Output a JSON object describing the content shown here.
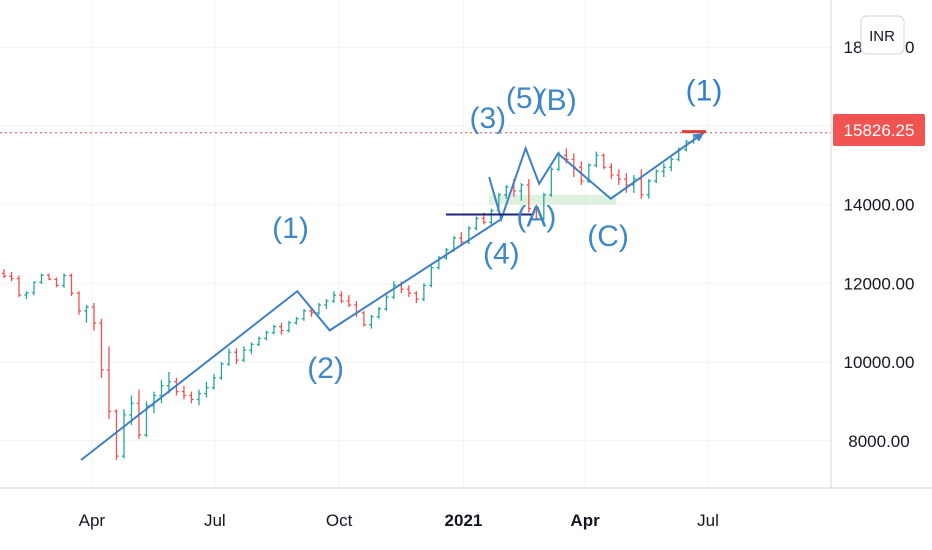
{
  "chart_data": {
    "type": "bar",
    "currency": "INR",
    "last_price": "15826.25",
    "ylim": [
      6800,
      19200
    ],
    "y_ticks": [
      {
        "value": 18000,
        "label": "18000.00"
      },
      {
        "value": 14000,
        "label": "14000.00"
      },
      {
        "value": 12000,
        "label": "12000.00"
      },
      {
        "value": 10000,
        "label": "10000.00"
      },
      {
        "value": 8000,
        "label": "8000.00"
      }
    ],
    "x_ticks": [
      {
        "date": "2020-04-01",
        "label": "Apr",
        "bold": false
      },
      {
        "date": "2020-07-01",
        "label": "Jul",
        "bold": false
      },
      {
        "date": "2020-10-01",
        "label": "Oct",
        "bold": false
      },
      {
        "date": "2021-01-01",
        "label": "2021",
        "bold": true
      },
      {
        "date": "2021-04-01",
        "label": "Apr",
        "bold": true
      },
      {
        "date": "2021-07-01",
        "label": "Jul",
        "bold": false
      }
    ],
    "xlim": [
      "2020-01-24",
      "2021-09-30"
    ],
    "wave_path": [
      {
        "date": "2020-03-24",
        "value": 7511
      },
      {
        "date": "2020-08-31",
        "value": 11800
      },
      {
        "date": "2020-09-24",
        "value": 10805
      },
      {
        "date": "2021-01-29",
        "value": 13634
      },
      {
        "date": "2021-01-20",
        "value": 14700
      },
      {
        "date": "2021-01-29",
        "value": 13634
      },
      {
        "date": "2021-02-16",
        "value": 15432
      },
      {
        "date": "2021-02-26",
        "value": 14530
      },
      {
        "date": "2021-03-12",
        "value": 15300
      },
      {
        "date": "2021-04-20",
        "value": 14150
      },
      {
        "date": "2021-06-28",
        "value": 15830
      }
    ],
    "wave_labels": [
      {
        "label": "(1)",
        "date": "2020-08-26",
        "value": 13150,
        "highlight": false
      },
      {
        "label": "(2)",
        "date": "2020-09-21",
        "value": 9600,
        "highlight": false
      },
      {
        "label": "(3)",
        "date": "2021-01-19",
        "value": 15950,
        "highlight": false
      },
      {
        "label": "(4)",
        "date": "2021-01-29",
        "value": 12500,
        "highlight": false
      },
      {
        "label": "(5)",
        "date": "2021-02-15",
        "value": 16450,
        "highlight": false
      },
      {
        "label": "(A)",
        "date": "2021-02-24",
        "value": 13450,
        "highlight": false
      },
      {
        "label": "(B)",
        "date": "2021-03-11",
        "value": 16400,
        "highlight": false
      },
      {
        "label": "(C)",
        "date": "2021-04-18",
        "value": 12950,
        "highlight": false
      },
      {
        "label": "(1)",
        "date": "2021-06-28",
        "value": 16650,
        "highlight": true
      }
    ],
    "support_line": {
      "start": "2020-12-19",
      "end": "2021-02-21",
      "value": 13750
    },
    "zone": {
      "start": "2021-01-20",
      "end": "2021-04-24",
      "low": 14000,
      "high": 14250
    },
    "ohlc": [
      [
        12254,
        12362,
        12134,
        12180
      ],
      [
        12180,
        12290,
        12050,
        12120
      ],
      [
        12120,
        12200,
        11650,
        11705
      ],
      [
        11705,
        11800,
        11600,
        11760
      ],
      [
        11760,
        12050,
        11700,
        12030
      ],
      [
        12030,
        12250,
        11980,
        12210
      ],
      [
        12210,
        12245,
        12080,
        12100
      ],
      [
        12100,
        12150,
        11900,
        11950
      ],
      [
        11950,
        12250,
        11880,
        12200
      ],
      [
        12200,
        12250,
        11680,
        11750
      ],
      [
        11750,
        11800,
        11200,
        11300
      ],
      [
        11300,
        11450,
        11000,
        11400
      ],
      [
        11400,
        11500,
        10800,
        10990
      ],
      [
        10990,
        11100,
        9600,
        9800
      ],
      [
        9800,
        10400,
        8550,
        8750
      ],
      [
        8750,
        8800,
        7511,
        7610
      ],
      [
        7610,
        8800,
        7550,
        8660
      ],
      [
        8660,
        9150,
        8400,
        8950
      ],
      [
        8950,
        9300,
        8050,
        8150
      ],
      [
        8150,
        9000,
        8100,
        8890
      ],
      [
        8890,
        9250,
        8700,
        9150
      ],
      [
        9150,
        9550,
        8950,
        9400
      ],
      [
        9400,
        9750,
        9200,
        9500
      ],
      [
        9500,
        9600,
        9150,
        9250
      ],
      [
        9250,
        9400,
        9050,
        9150
      ],
      [
        9150,
        9250,
        8950,
        9050
      ],
      [
        9050,
        9300,
        8900,
        9200
      ],
      [
        9200,
        9500,
        9100,
        9350
      ],
      [
        9350,
        9700,
        9300,
        9600
      ],
      [
        9600,
        10000,
        9550,
        9950
      ],
      [
        9950,
        10350,
        9900,
        10250
      ],
      [
        10250,
        10350,
        9950,
        10050
      ],
      [
        10050,
        10400,
        10000,
        10300
      ],
      [
        10300,
        10500,
        10200,
        10450
      ],
      [
        10450,
        10650,
        10400,
        10600
      ],
      [
        10600,
        10800,
        10550,
        10750
      ],
      [
        10750,
        10950,
        10700,
        10900
      ],
      [
        10900,
        11000,
        10700,
        10800
      ],
      [
        10800,
        11050,
        10750,
        11000
      ],
      [
        11000,
        11150,
        10950,
        11100
      ],
      [
        11100,
        11350,
        11050,
        11300
      ],
      [
        11300,
        11400,
        11150,
        11250
      ],
      [
        11250,
        11500,
        11200,
        11450
      ],
      [
        11450,
        11600,
        11350,
        11550
      ],
      [
        11550,
        11800,
        11500,
        11700
      ],
      [
        11700,
        11800,
        11500,
        11550
      ],
      [
        11550,
        11700,
        11400,
        11450
      ],
      [
        11450,
        11550,
        11150,
        11250
      ],
      [
        11250,
        11300,
        10900,
        10950
      ],
      [
        10950,
        11200,
        10850,
        11150
      ],
      [
        11150,
        11400,
        11100,
        11350
      ],
      [
        11350,
        11700,
        11300,
        11650
      ],
      [
        11650,
        12050,
        11600,
        11950
      ],
      [
        11950,
        12050,
        11750,
        11850
      ],
      [
        11850,
        11950,
        11650,
        11750
      ],
      [
        11750,
        11800,
        11500,
        11600
      ],
      [
        11600,
        12000,
        11550,
        11950
      ],
      [
        11950,
        12450,
        11900,
        12400
      ],
      [
        12400,
        12700,
        12350,
        12650
      ],
      [
        12650,
        12900,
        12600,
        12850
      ],
      [
        12850,
        13200,
        12800,
        13150
      ],
      [
        13150,
        13300,
        12950,
        13050
      ],
      [
        13050,
        13450,
        13000,
        13400
      ],
      [
        13400,
        13700,
        13350,
        13650
      ],
      [
        13650,
        13800,
        13500,
        13550
      ],
      [
        13550,
        13900,
        13450,
        13850
      ],
      [
        13850,
        14300,
        13800,
        14250
      ],
      [
        14250,
        14500,
        14150,
        14450
      ],
      [
        14450,
        14650,
        14200,
        14350
      ],
      [
        14350,
        14550,
        14100,
        14500
      ],
      [
        14500,
        14650,
        13800,
        13900
      ],
      [
        13900,
        14000,
        13600,
        13650
      ],
      [
        13650,
        14300,
        13600,
        14250
      ],
      [
        14250,
        14950,
        14200,
        14900
      ],
      [
        14900,
        15350,
        14850,
        15250
      ],
      [
        15250,
        15430,
        15050,
        15150
      ],
      [
        15150,
        15300,
        14700,
        14950
      ],
      [
        14950,
        15100,
        14500,
        14600
      ],
      [
        14600,
        15050,
        14550,
        15000
      ],
      [
        15000,
        15350,
        14950,
        15250
      ],
      [
        15250,
        15300,
        14900,
        14950
      ],
      [
        14950,
        15050,
        14650,
        14750
      ],
      [
        14750,
        14900,
        14500,
        14650
      ],
      [
        14650,
        14800,
        14300,
        14500
      ],
      [
        14500,
        14750,
        14300,
        14650
      ],
      [
        14650,
        14900,
        14150,
        14250
      ],
      [
        14250,
        14650,
        14150,
        14600
      ],
      [
        14600,
        14900,
        14550,
        14850
      ],
      [
        14850,
        15050,
        14700,
        14950
      ],
      [
        14950,
        15200,
        14850,
        15150
      ],
      [
        15150,
        15450,
        15100,
        15400
      ],
      [
        15400,
        15650,
        15350,
        15600
      ],
      [
        15600,
        15800,
        15550,
        15750
      ],
      [
        15750,
        15850,
        15700,
        15826
      ]
    ]
  }
}
